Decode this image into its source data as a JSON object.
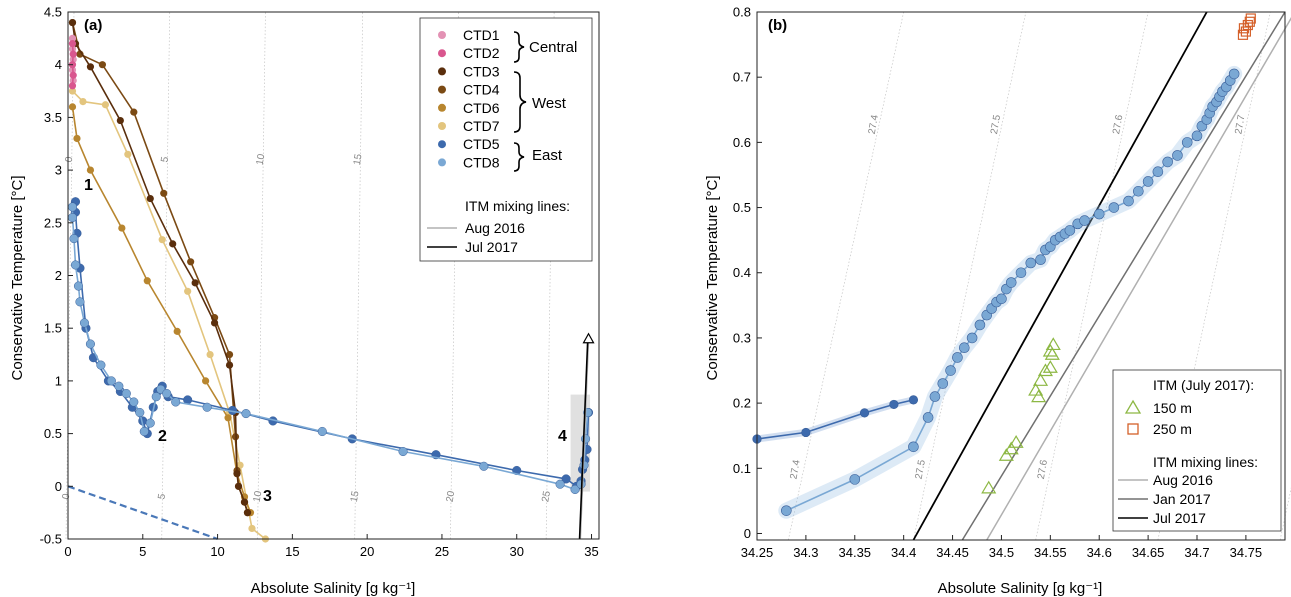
{
  "colors": {
    "CTD1": "#e392b4",
    "CTD2": "#d9568e",
    "CTD3": "#5a2e0c",
    "CTD4": "#7b4a14",
    "CTD6": "#b8862f",
    "CTD7": "#e3c57e",
    "CTD5": "#3d6aad",
    "CTD8": "#7aa8d4",
    "itm_aug2016": "#b0b0b0",
    "itm_jan2017": "#707070",
    "itm_jul2017": "#000000",
    "itm150": "#8db844",
    "itm250": "#d4602a",
    "isopycnal": "#c4c4c4"
  },
  "chart_data": [
    {
      "type": "line",
      "panel_label": "(a)",
      "xlabel": "Absolute Salinity [g kg⁻¹]",
      "ylabel": "Conservative Temperature [°C]",
      "xlim": [
        0,
        35.5
      ],
      "ylim": [
        -0.5,
        4.5
      ],
      "xticks": [
        "0",
        "5",
        "10",
        "15",
        "20",
        "25",
        "30",
        "35"
      ],
      "yticks": [
        "-0.5",
        "0",
        "0.5",
        "1",
        "1.5",
        "2",
        "2.5",
        "3",
        "3.5",
        "4",
        "4.5"
      ],
      "grid": false,
      "legend_position": "top-right",
      "legend_groups": [
        {
          "label": "Central",
          "members": [
            "CTD1",
            "CTD2"
          ]
        },
        {
          "label": "West",
          "members": [
            "CTD3",
            "CTD4",
            "CTD6",
            "CTD7"
          ]
        },
        {
          "label": "East",
          "members": [
            "CTD5",
            "CTD8"
          ]
        }
      ],
      "mixing_legend_title": "ITM mixing lines:",
      "mixing_legend": [
        "Aug 2016",
        "Jul 2017"
      ],
      "annotations": [
        "1",
        "2",
        "3",
        "4"
      ],
      "isopycnal_labels_top": [
        "0",
        "5",
        "10",
        "15"
      ],
      "isopycnal_labels_bottom": [
        "0",
        "5",
        "10",
        "15",
        "20",
        "25"
      ],
      "series": [
        {
          "name": "CTD1",
          "x": [
            0.3,
            0.3,
            0.35,
            0.3,
            0.35
          ],
          "y": [
            4.25,
            4.15,
            4.05,
            3.95,
            3.85
          ]
        },
        {
          "name": "CTD2",
          "x": [
            0.3,
            0.35,
            0.3,
            0.35,
            0.3
          ],
          "y": [
            4.2,
            4.1,
            4.0,
            3.9,
            3.8
          ]
        },
        {
          "name": "CTD3",
          "x": [
            0.3,
            0.5,
            1.5,
            3.5,
            5.5,
            7.0,
            8.5,
            9.8,
            10.8,
            11.2,
            11.3,
            11.4,
            11.8,
            12.0
          ],
          "y": [
            4.4,
            4.2,
            3.98,
            3.47,
            2.73,
            2.3,
            1.93,
            1.55,
            1.15,
            0.7,
            0.12,
            0.0,
            -0.15,
            -0.25
          ]
        },
        {
          "name": "CTD4",
          "x": [
            0.3,
            0.8,
            2.3,
            4.4,
            6.4,
            8.2,
            9.8,
            10.8,
            11.2,
            11.3,
            11.4,
            11.8,
            12.0
          ],
          "y": [
            4.4,
            4.1,
            4.0,
            3.55,
            2.78,
            2.13,
            1.6,
            1.25,
            0.47,
            0.15,
            0.0,
            -0.15,
            -0.25
          ]
        },
        {
          "name": "CTD6",
          "x": [
            0.3,
            0.6,
            1.5,
            3.6,
            5.3,
            7.3,
            9.2,
            10.7,
            11.3,
            11.8,
            12.2
          ],
          "y": [
            3.6,
            3.3,
            3.0,
            2.45,
            1.95,
            1.47,
            1.0,
            0.65,
            0.12,
            -0.1,
            -0.25
          ]
        },
        {
          "name": "CTD7",
          "x": [
            0.3,
            1.0,
            2.5,
            4.0,
            6.3,
            8.0,
            9.5,
            10.8,
            11.5,
            12.3,
            13.2
          ],
          "y": [
            3.75,
            3.65,
            3.62,
            3.15,
            2.34,
            1.85,
            1.25,
            0.7,
            0.2,
            -0.4,
            -0.5
          ]
        },
        {
          "name": "CTD5",
          "x": [
            0.5,
            0.5,
            0.6,
            0.8,
            1.2,
            1.7,
            2.7,
            3.5,
            4.3,
            5.0,
            5.3,
            5.7,
            6.0,
            6.3,
            6.7,
            8.0,
            11.0,
            13.7,
            19.0,
            24.6,
            30.0,
            33.3,
            34.0,
            34.3,
            34.4,
            34.55,
            34.7,
            34.8
          ],
          "y": [
            2.7,
            2.6,
            2.4,
            2.07,
            1.5,
            1.22,
            1.0,
            0.9,
            0.75,
            0.62,
            0.5,
            0.75,
            0.9,
            0.95,
            0.85,
            0.82,
            0.72,
            0.62,
            0.45,
            0.3,
            0.15,
            0.07,
            0.0,
            0.05,
            0.16,
            0.25,
            0.35,
            0.7
          ]
        },
        {
          "name": "CTD8",
          "x": [
            0.3,
            0.3,
            0.4,
            0.5,
            0.7,
            0.8,
            1.1,
            1.5,
            2.2,
            2.9,
            3.4,
            3.9,
            4.4,
            4.8,
            5.1,
            5.5,
            5.9,
            6.2,
            6.6,
            7.2,
            9.3,
            11.9,
            17.0,
            22.4,
            27.8,
            32.9,
            33.9,
            34.3,
            34.5,
            34.6,
            34.75
          ],
          "y": [
            2.65,
            2.55,
            2.35,
            2.1,
            1.9,
            1.75,
            1.55,
            1.35,
            1.15,
            1.0,
            0.95,
            0.88,
            0.8,
            0.7,
            0.52,
            0.6,
            0.85,
            0.92,
            0.88,
            0.8,
            0.75,
            0.69,
            0.52,
            0.33,
            0.19,
            0.02,
            -0.03,
            0.02,
            0.2,
            0.45,
            0.7
          ]
        },
        {
          "name": "Aug 2016",
          "x": [
            34.25,
            34.8
          ],
          "y": [
            -0.5,
            1.4
          ]
        },
        {
          "name": "Jul 2017",
          "x": [
            34.2,
            34.75
          ],
          "y": [
            -0.5,
            1.4
          ]
        },
        {
          "name": "",
          "x": [
            0,
            10
          ],
          "y": [
            0.0,
            -0.5
          ]
        }
      ]
    },
    {
      "type": "scatter",
      "panel_label": "(b)",
      "xlabel": "Absolute Salinity [g kg⁻¹]",
      "ylabel": "Conservative Temperature [°C]",
      "xlim": [
        34.25,
        34.79
      ],
      "ylim": [
        -0.01,
        0.8
      ],
      "xticks": [
        "34.25",
        "34.3",
        "34.35",
        "34.4",
        "34.45",
        "34.5",
        "34.55",
        "34.6",
        "34.65",
        "34.7",
        "34.75"
      ],
      "yticks": [
        "0",
        "0.1",
        "0.2",
        "0.3",
        "0.4",
        "0.5",
        "0.6",
        "0.7",
        "0.8"
      ],
      "grid": false,
      "legend_position": "bottom-right",
      "itm_legend_title": "ITM (July 2017):",
      "itm_legend": [
        "150 m",
        "250 m"
      ],
      "mixing_legend_title": "ITM mixing lines:",
      "mixing_legend": [
        "Aug 2016",
        "Jan 2017",
        "Jul 2017"
      ],
      "isopycnal_labels_top": [
        "27.4",
        "27.5",
        "27.6",
        "27.7"
      ],
      "isopycnal_labels_bottom": [
        "27.4",
        "27.5",
        "27.6",
        "27.7"
      ],
      "series": [
        {
          "name": "CTD5",
          "x": [
            34.25,
            34.3,
            34.36,
            34.39,
            34.41
          ],
          "y": [
            0.145,
            0.155,
            0.185,
            0.198,
            0.205
          ]
        },
        {
          "name": "CTD8",
          "x": [
            34.28,
            34.35,
            34.41,
            34.425,
            34.432,
            34.44,
            34.448,
            34.455,
            34.462,
            34.47,
            34.478,
            34.485,
            34.49,
            34.495,
            34.5,
            34.505,
            34.51,
            34.52,
            34.53,
            34.54,
            34.545,
            34.55,
            34.555,
            34.56,
            34.565,
            34.57,
            34.578,
            34.585,
            34.6,
            34.615,
            34.63,
            34.64,
            34.65,
            34.66,
            34.67,
            34.68,
            34.69,
            34.7,
            34.705,
            34.71,
            34.713,
            34.716,
            34.72,
            34.723,
            34.726,
            34.73,
            34.734,
            34.738
          ],
          "y": [
            0.035,
            0.083,
            0.133,
            0.178,
            0.21,
            0.23,
            0.25,
            0.27,
            0.285,
            0.3,
            0.32,
            0.335,
            0.345,
            0.355,
            0.36,
            0.375,
            0.385,
            0.4,
            0.415,
            0.42,
            0.435,
            0.44,
            0.45,
            0.455,
            0.46,
            0.465,
            0.475,
            0.48,
            0.49,
            0.5,
            0.51,
            0.525,
            0.54,
            0.555,
            0.57,
            0.58,
            0.6,
            0.61,
            0.625,
            0.635,
            0.645,
            0.655,
            0.662,
            0.67,
            0.678,
            0.685,
            0.695,
            0.705
          ]
        },
        {
          "name": "150 m",
          "x": [
            34.487,
            34.505,
            34.51,
            34.515,
            34.535,
            34.538,
            34.54,
            34.545,
            34.55,
            34.552,
            34.55,
            34.553
          ],
          "y": [
            0.07,
            0.12,
            0.13,
            0.14,
            0.22,
            0.21,
            0.235,
            0.25,
            0.255,
            0.275,
            0.28,
            0.29
          ]
        },
        {
          "name": "250 m",
          "x": [
            34.747,
            34.748,
            34.75,
            34.752,
            34.754,
            34.755
          ],
          "y": [
            0.765,
            0.775,
            0.77,
            0.78,
            0.785,
            0.79
          ]
        },
        {
          "name": "Aug 2016",
          "x": [
            34.485,
            34.8
          ],
          "y": [
            -0.01,
            0.8
          ]
        },
        {
          "name": "Jan 2017",
          "x": [
            34.46,
            34.79
          ],
          "y": [
            -0.01,
            0.8
          ]
        },
        {
          "name": "Jul 2017",
          "x": [
            34.41,
            34.71
          ],
          "y": [
            -0.01,
            0.8
          ]
        }
      ]
    }
  ]
}
